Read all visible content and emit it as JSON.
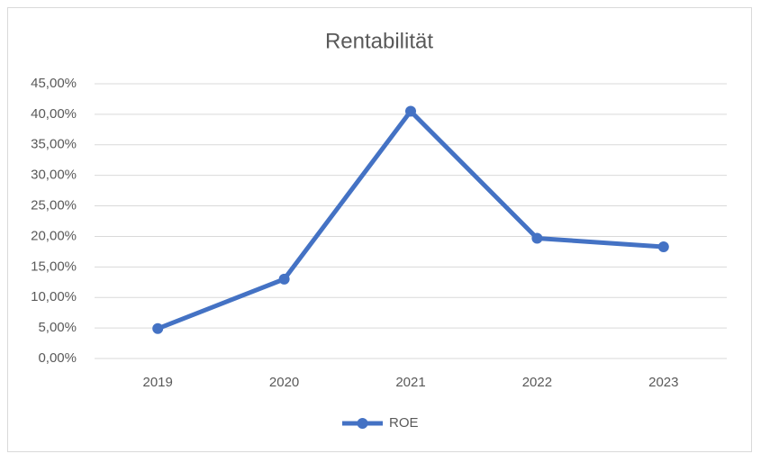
{
  "chart_data": {
    "type": "line",
    "title": "Rentabilität",
    "categories": [
      "2019",
      "2020",
      "2021",
      "2022",
      "2023"
    ],
    "series": [
      {
        "name": "ROE",
        "color": "#4472c4",
        "values": [
          4.9,
          13.0,
          40.5,
          19.7,
          18.3
        ]
      }
    ],
    "ylim": [
      0,
      45
    ],
    "yticks": [
      {
        "value": 0,
        "label": "0,00%"
      },
      {
        "value": 5,
        "label": "5,00%"
      },
      {
        "value": 10,
        "label": "10,00%"
      },
      {
        "value": 15,
        "label": "15,00%"
      },
      {
        "value": 20,
        "label": "20,00%"
      },
      {
        "value": 25,
        "label": "25,00%"
      },
      {
        "value": 30,
        "label": "30,00%"
      },
      {
        "value": 35,
        "label": "35,00%"
      },
      {
        "value": 40,
        "label": "40,00%"
      },
      {
        "value": 45,
        "label": "45,00%"
      }
    ],
    "grid": true,
    "legend": "bottom"
  }
}
